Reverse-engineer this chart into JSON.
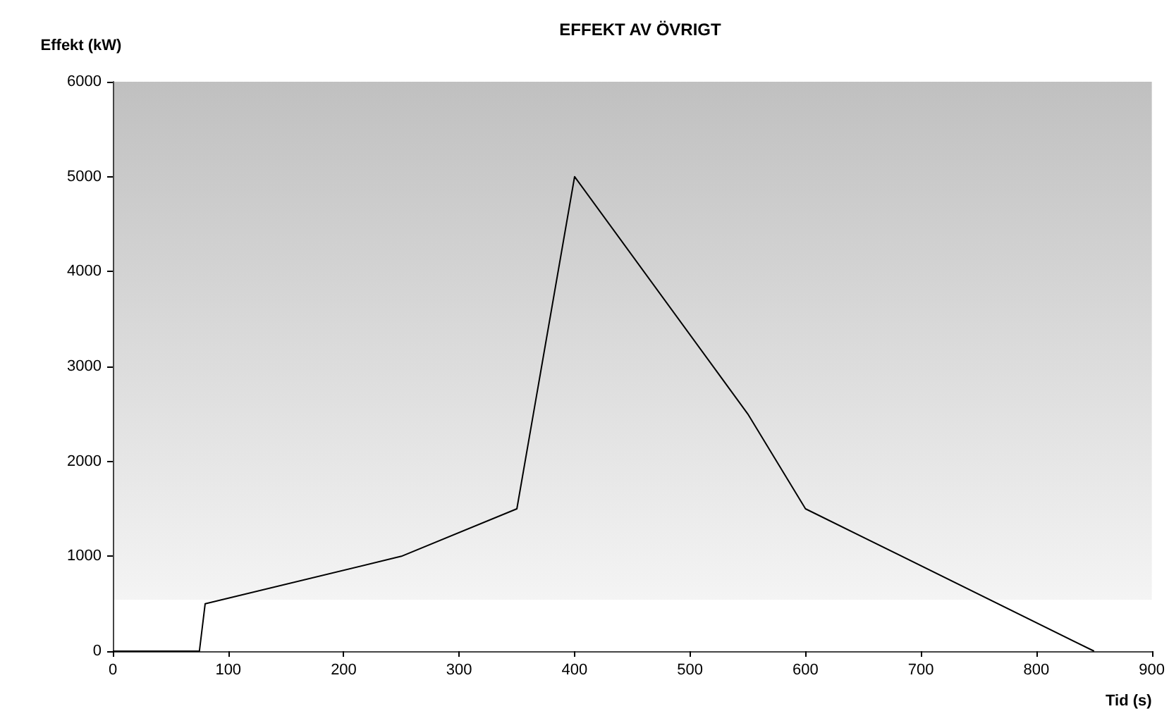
{
  "chart_data": {
    "type": "line",
    "title": "EFFEKT AV ÖVRIGT",
    "xlabel": "Tid (s)",
    "ylabel": "Effekt (kW)",
    "x": [
      0,
      75,
      80,
      250,
      350,
      400,
      550,
      600,
      850
    ],
    "series": [
      {
        "color": "#000000",
        "values": [
          0,
          0,
          500,
          1000,
          1500,
          5000,
          2500,
          1500,
          0
        ]
      }
    ],
    "xlim": [
      0,
      900
    ],
    "xticks": [
      0,
      100,
      200,
      300,
      400,
      500,
      600,
      700,
      800,
      900
    ],
    "ylim": [
      0,
      6000
    ],
    "yticks": [
      0,
      1000,
      2000,
      3000,
      4000,
      5000,
      6000
    ],
    "grid": false,
    "marker": "none",
    "line_style": "solid"
  }
}
